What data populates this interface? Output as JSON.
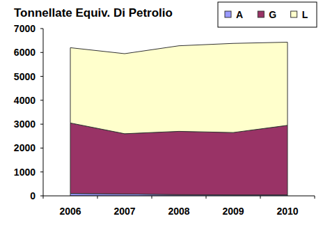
{
  "chart_data": {
    "type": "area",
    "title": "Tonnellate Equiv. Di Petrolio",
    "categories": [
      "2006",
      "2007",
      "2008",
      "2009",
      "2010"
    ],
    "series": [
      {
        "name": "A",
        "color": "#9999ff",
        "values": [
          100,
          80,
          50,
          40,
          40
        ]
      },
      {
        "name": "G",
        "color": "#993366",
        "values": [
          2950,
          2520,
          2650,
          2610,
          2910
        ]
      },
      {
        "name": "L",
        "color": "#ffffcc",
        "values": [
          3150,
          3350,
          3580,
          3730,
          3480
        ]
      }
    ],
    "stacked": true,
    "ylim": [
      0,
      7000
    ],
    "yticks": [
      0,
      1000,
      2000,
      3000,
      4000,
      5000,
      6000,
      7000
    ],
    "grid": false,
    "legend": "top-right"
  }
}
